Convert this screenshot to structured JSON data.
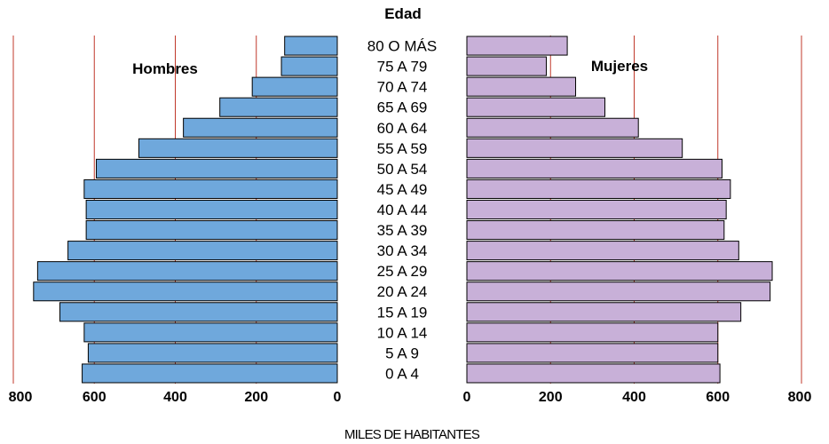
{
  "chart_data": {
    "type": "bar",
    "orientation": "horizontal",
    "layout": "population-pyramid",
    "title": "Edad",
    "xlabel": "MILES DE HABITANTES",
    "xlim": [
      0,
      800
    ],
    "ticks": [
      "0",
      "200",
      "400",
      "600",
      "800"
    ],
    "tick_values": [
      0,
      200,
      400,
      600,
      800
    ],
    "grid": true,
    "categories": [
      "80 O MÁS",
      "75 A 79",
      "70 A 74",
      "65 A 69",
      "60 A 64",
      "55 A 59",
      "50 A 54",
      "45 A 49",
      "40 A 44",
      "35 A 39",
      "30 A 34",
      "25 A 29",
      "20 A 24",
      "15 A 19",
      "10 A 14",
      "5 A 9",
      "0 A 4"
    ],
    "series": [
      {
        "name": "Hombres",
        "side": "left",
        "color": "#6fa8dc",
        "values": [
          130,
          138,
          210,
          290,
          380,
          490,
          595,
          625,
          620,
          620,
          665,
          740,
          750,
          685,
          625,
          615,
          630
        ]
      },
      {
        "name": "Mujeres",
        "side": "right",
        "color": "#c8b0d8",
        "values": [
          240,
          190,
          260,
          330,
          410,
          515,
          610,
          630,
          620,
          615,
          650,
          730,
          725,
          655,
          600,
          600,
          605
        ]
      }
    ],
    "colors": {
      "grid": "#c0392b",
      "bar_edge": "#000000"
    }
  }
}
